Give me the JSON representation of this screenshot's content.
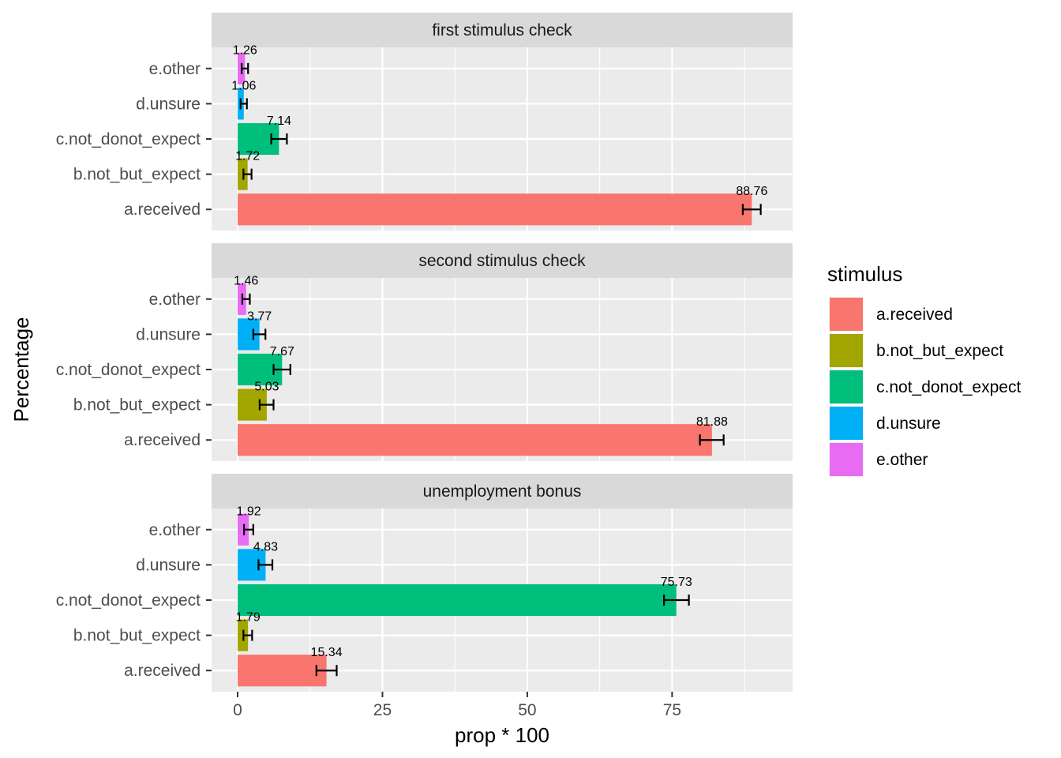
{
  "chart_data": {
    "type": "bar",
    "orientation": "horizontal",
    "xlabel": "prop * 100",
    "ylabel": "Percentage",
    "xlim": [
      -4.5,
      95.8
    ],
    "xticks": [
      0,
      25,
      50,
      75
    ],
    "xtick_labels": [
      "0",
      "25",
      "50",
      "75"
    ],
    "categories": [
      "e.other",
      "d.unsure",
      "c.not_donot_expect",
      "b.not_but_expect",
      "a.received"
    ],
    "grid": true,
    "legend": {
      "title": "stimulus",
      "placement": "right",
      "entries": [
        {
          "label": "a.received",
          "color": "#F8766D"
        },
        {
          "label": "b.not_but_expect",
          "color": "#A3A500"
        },
        {
          "label": "c.not_donot_expect",
          "color": "#00BF7D"
        },
        {
          "label": "d.unsure",
          "color": "#00B0F6"
        },
        {
          "label": "e.other",
          "color": "#E76BF3"
        }
      ]
    },
    "panels": [
      {
        "title": "first stimulus check",
        "bars": [
          {
            "category": "e.other",
            "value": 1.26,
            "label": "1.26",
            "err_low": 0.7,
            "err_high": 1.8
          },
          {
            "category": "d.unsure",
            "value": 1.06,
            "label": "1.06",
            "err_low": 0.5,
            "err_high": 1.6
          },
          {
            "category": "c.not_donot_expect",
            "value": 7.14,
            "label": "7.14",
            "err_low": 5.8,
            "err_high": 8.5
          },
          {
            "category": "b.not_but_expect",
            "value": 1.72,
            "label": "1.72",
            "err_low": 1.0,
            "err_high": 2.4
          },
          {
            "category": "a.received",
            "value": 88.76,
            "label": "88.76",
            "err_low": 87.2,
            "err_high": 90.3
          }
        ]
      },
      {
        "title": "second stimulus check",
        "bars": [
          {
            "category": "e.other",
            "value": 1.46,
            "label": "1.46",
            "err_low": 0.8,
            "err_high": 2.1
          },
          {
            "category": "d.unsure",
            "value": 3.77,
            "label": "3.77",
            "err_low": 2.7,
            "err_high": 4.8
          },
          {
            "category": "c.not_donot_expect",
            "value": 7.67,
            "label": "7.67",
            "err_low": 6.2,
            "err_high": 9.1
          },
          {
            "category": "b.not_but_expect",
            "value": 5.03,
            "label": "5.03",
            "err_low": 3.8,
            "err_high": 6.2
          },
          {
            "category": "a.received",
            "value": 81.88,
            "label": "81.88",
            "err_low": 79.8,
            "err_high": 83.9
          }
        ]
      },
      {
        "title": "unemployment bonus",
        "bars": [
          {
            "category": "e.other",
            "value": 1.92,
            "label": "1.92",
            "err_low": 1.1,
            "err_high": 2.7
          },
          {
            "category": "d.unsure",
            "value": 4.83,
            "label": "4.83",
            "err_low": 3.6,
            "err_high": 6.0
          },
          {
            "category": "c.not_donot_expect",
            "value": 75.73,
            "label": "75.73",
            "err_low": 73.6,
            "err_high": 77.9
          },
          {
            "category": "b.not_but_expect",
            "value": 1.79,
            "label": "1.79",
            "err_low": 1.0,
            "err_high": 2.5
          },
          {
            "category": "a.received",
            "value": 15.34,
            "label": "15.34",
            "err_low": 13.6,
            "err_high": 17.1
          }
        ]
      }
    ]
  }
}
